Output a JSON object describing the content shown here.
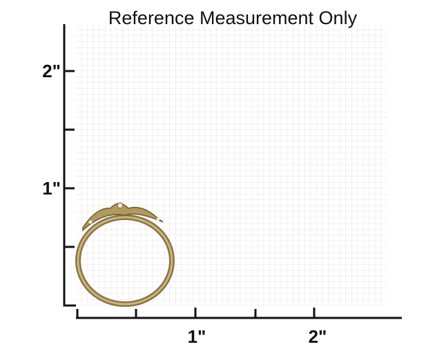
{
  "title": "Reference Measurement Only",
  "y_labels": [
    "2\"",
    "1\""
  ],
  "x_labels": [
    "1\"",
    "2\""
  ]
}
